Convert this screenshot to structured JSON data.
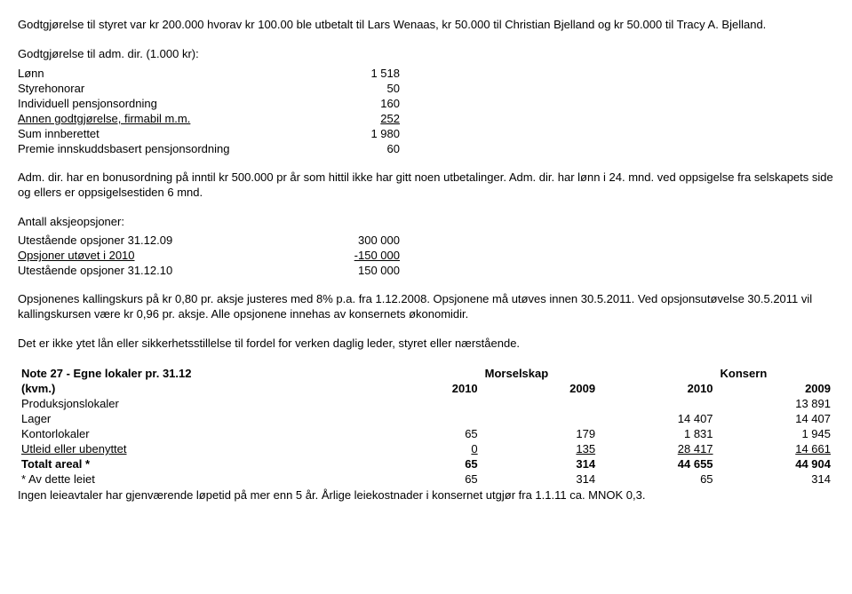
{
  "intro": {
    "p1": "Godtgjørelse til styret var kr 200.000 hvorav kr 100.00 ble utbetalt til Lars Wenaas, kr 50.000 til Christian Bjelland og kr 50.000 til Tracy A. Bjelland.",
    "p2": "Godtgjørelse til adm. dir. (1.000 kr):"
  },
  "comp": {
    "rows": [
      {
        "label": "Lønn",
        "value": "1 518"
      },
      {
        "label": "Styrehonorar",
        "value": "50"
      },
      {
        "label": "Individuell pensjonsordning",
        "value": "160"
      },
      {
        "label": "Annen godtgjørelse, firmabil m.m.",
        "value": "252",
        "underline": true
      },
      {
        "label": "Sum innberettet",
        "value": "1 980"
      },
      {
        "label": "Premie innskuddsbasert pensjonsordning",
        "value": "60"
      }
    ]
  },
  "bonus_text": "Adm. dir. har en bonusordning på inntil kr 500.000 pr år som hittil ikke har gitt noen utbetalinger. Adm. dir. har lønn i 24. mnd. ved oppsigelse fra selskapets side og ellers er oppsigelsestiden 6 mnd.",
  "options": {
    "title": "Antall aksjeopsjoner:",
    "rows": [
      {
        "label": "Utestående opsjoner 31.12.09",
        "value": "300 000"
      },
      {
        "label": "Opsjoner utøvet i 2010",
        "value": "-150 000",
        "underline": true
      },
      {
        "label": "Utestående opsjoner 31.12.10",
        "value": "150 000"
      }
    ]
  },
  "options_text": "Opsjonenes kallingskurs på kr 0,80 pr. aksje justeres med 8% p.a. fra 1.12.2008. Opsjonene må utøves innen 30.5.2011. Ved opsjonsutøvelse 30.5.2011 vil kallingskursen være kr 0,96 pr. aksje. Alle opsjonene innehas av konsernets økonomidir.",
  "loan_text": "Det er ikke ytet lån eller sikkerhetsstillelse til fordel for verken daglig leder, styret eller nærstående.",
  "note27": {
    "title_left": "Note 27 - Egne lokaler pr. 31.12",
    "group_mor": "Morselskap",
    "group_kon": "Konsern",
    "unit": "(kvm.)",
    "years": [
      "2010",
      "2009",
      "2010",
      "2009"
    ],
    "rows": [
      {
        "label": "Produksjonslokaler",
        "v": [
          "",
          "",
          "",
          "13 891"
        ]
      },
      {
        "label": "Lager",
        "v": [
          "",
          "",
          "14 407",
          "14 407"
        ]
      },
      {
        "label": "Kontorlokaler",
        "v": [
          "65",
          "179",
          "1 831",
          "1 945"
        ]
      },
      {
        "label": "Utleid eller ubenyttet",
        "v": [
          "0",
          "135",
          "28 417",
          "14 661"
        ],
        "underline": true
      }
    ],
    "total": {
      "label": "Totalt areal *",
      "v": [
        "65",
        "314",
        "44 655",
        "44 904"
      ]
    },
    "leased": {
      "label": "* Av dette leiet",
      "v": [
        "65",
        "314",
        "65",
        "314"
      ]
    },
    "footer": "Ingen leieavtaler har gjenværende løpetid på mer enn 5 år. Årlige leiekostnader i konsernet utgjør fra 1.1.11 ca. MNOK 0,3."
  }
}
